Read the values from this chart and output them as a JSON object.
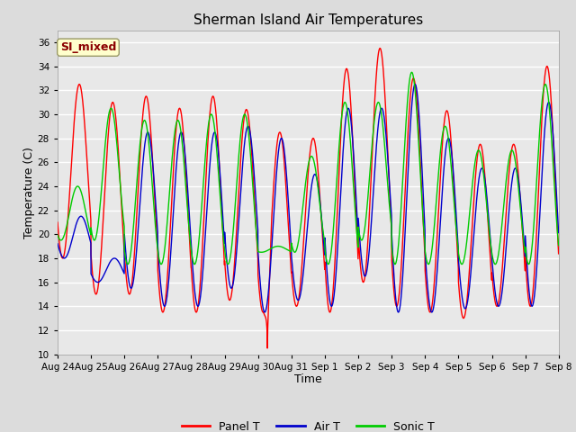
{
  "title": "Sherman Island Air Temperatures",
  "xlabel": "Time",
  "ylabel": "Temperature (C)",
  "ylim": [
    10,
    37
  ],
  "yticks": [
    10,
    12,
    14,
    16,
    18,
    20,
    22,
    24,
    26,
    28,
    30,
    32,
    34,
    36
  ],
  "annotation": "SI_mixed",
  "annotation_color": "#8B0000",
  "annotation_bg": "#FFFFCC",
  "bg_color": "#E8E8E8",
  "line_colors": {
    "panel": "#FF0000",
    "air": "#0000CC",
    "sonic": "#00CC00"
  },
  "legend_labels": [
    "Panel T",
    "Air T",
    "Sonic T"
  ],
  "num_days": 15,
  "x_tick_labels": [
    "Aug 24",
    "Aug 25",
    "Aug 26",
    "Aug 27",
    "Aug 28",
    "Aug 29",
    "Aug 30",
    "Aug 31",
    "Sep 1",
    "Sep 2",
    "Sep 3",
    "Sep 4",
    "Sep 5",
    "Sep 6",
    "Sep 7",
    "Sep 8"
  ],
  "panel_data": [
    [
      18.0,
      20.5,
      32.5,
      18.0
    ],
    [
      15.0,
      19.0,
      31.0,
      15.0
    ],
    [
      15.0,
      19.0,
      31.5,
      15.0
    ],
    [
      13.5,
      18.0,
      30.5,
      13.5
    ],
    [
      13.5,
      18.0,
      31.5,
      13.5
    ],
    [
      14.5,
      18.0,
      30.4,
      14.5
    ],
    [
      13.5,
      10.5,
      28.5,
      13.5
    ],
    [
      14.0,
      18.0,
      28.0,
      14.0
    ],
    [
      13.5,
      18.0,
      33.8,
      13.5
    ],
    [
      16.0,
      18.0,
      35.5,
      16.0
    ],
    [
      14.0,
      18.0,
      33.0,
      14.0
    ],
    [
      13.5,
      18.0,
      30.3,
      13.5
    ],
    [
      13.0,
      18.0,
      27.5,
      13.0
    ],
    [
      14.0,
      18.0,
      27.5,
      14.0
    ],
    [
      14.0,
      18.0,
      34.0,
      14.0
    ]
  ],
  "air_data": [
    [
      18.0,
      21.5,
      21.5,
      18.0
    ],
    [
      16.0,
      16.0,
      18.0,
      16.0
    ],
    [
      15.5,
      28.5,
      28.5,
      15.5
    ],
    [
      14.0,
      28.5,
      28.5,
      14.0
    ],
    [
      14.0,
      28.5,
      28.5,
      14.0
    ],
    [
      15.5,
      29.0,
      29.0,
      15.5
    ],
    [
      13.5,
      15.5,
      28.0,
      13.5
    ],
    [
      14.5,
      25.0,
      25.0,
      14.5
    ],
    [
      14.0,
      30.5,
      30.5,
      14.0
    ],
    [
      16.5,
      30.5,
      30.5,
      16.5
    ],
    [
      13.5,
      32.5,
      32.5,
      13.5
    ],
    [
      13.5,
      28.0,
      28.0,
      13.5
    ],
    [
      13.8,
      25.5,
      25.5,
      13.8
    ],
    [
      14.0,
      25.5,
      25.5,
      14.0
    ],
    [
      14.0,
      31.0,
      31.0,
      14.0
    ]
  ],
  "sonic_data": [
    [
      19.5,
      24.0,
      24.0,
      19.5
    ],
    [
      19.5,
      30.5,
      30.5,
      19.5
    ],
    [
      17.5,
      29.5,
      29.5,
      17.5
    ],
    [
      17.5,
      29.5,
      29.5,
      17.5
    ],
    [
      17.5,
      30.0,
      30.0,
      17.5
    ],
    [
      17.5,
      30.0,
      30.0,
      17.5
    ],
    [
      18.5,
      19.0,
      19.0,
      18.5
    ],
    [
      18.5,
      26.5,
      26.5,
      18.5
    ],
    [
      17.5,
      31.0,
      31.0,
      17.5
    ],
    [
      19.5,
      31.0,
      31.0,
      19.5
    ],
    [
      17.5,
      33.5,
      33.5,
      17.5
    ],
    [
      17.5,
      29.0,
      29.0,
      17.5
    ],
    [
      17.5,
      27.0,
      27.0,
      17.5
    ],
    [
      17.5,
      27.0,
      27.0,
      17.5
    ],
    [
      17.5,
      32.5,
      32.5,
      17.5
    ]
  ]
}
